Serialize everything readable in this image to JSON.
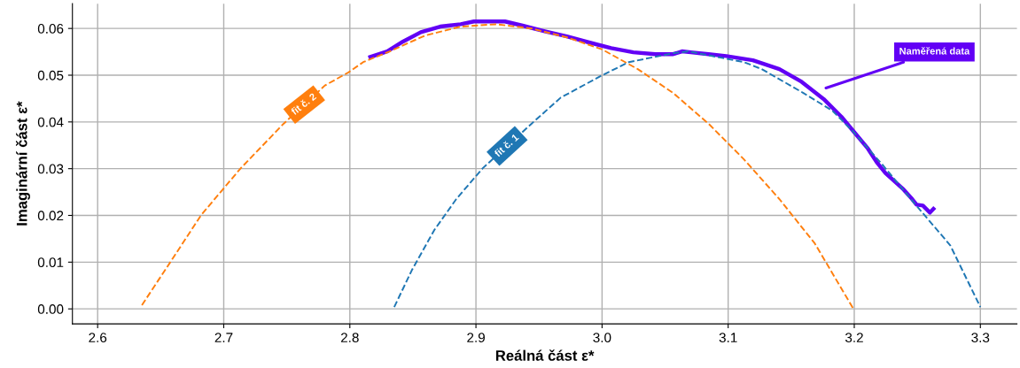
{
  "chart_data": {
    "type": "line",
    "xlabel": "Reálná část ε*",
    "ylabel": "Imaginární část ε*",
    "xlim": [
      2.58,
      3.329
    ],
    "ylim": [
      -0.0032,
      0.0653
    ],
    "xticks": [
      2.6,
      2.7,
      2.8,
      2.9,
      {
        "value": 3.0,
        "label": "3.0"
      },
      3.1,
      3.2,
      3.3
    ],
    "yticks": [
      {
        "value": 0,
        "label": "0.00"
      },
      0.01,
      0.02,
      0.03,
      0.04,
      0.05,
      0.06
    ],
    "grid": true,
    "legend": false,
    "marker": "none",
    "series": [
      {
        "name": "fit č. 2",
        "color": "#ff7f0e",
        "line_style": "dashed",
        "x": [
          2.6351,
          2.6574,
          2.6819,
          2.7006,
          2.7135,
          2.7474,
          2.7802,
          2.7989,
          2.8106,
          2.8317,
          2.8598,
          2.8879,
          2.9159,
          2.944,
          2.9721,
          3.0002,
          3.0283,
          3.0564,
          3.0845,
          3.1125,
          3.1406,
          3.1687,
          3.1989
        ],
        "values": [
          0.0008,
          0.0099,
          0.02,
          0.026,
          0.0301,
          0.0396,
          0.0478,
          0.0506,
          0.0528,
          0.0551,
          0.0585,
          0.0604,
          0.0609,
          0.06,
          0.0581,
          0.0555,
          0.0513,
          0.0462,
          0.0396,
          0.032,
          0.0235,
          0.014,
          0.0002
        ]
      },
      {
        "name": "fit č. 1",
        "color": "#1f77b4",
        "line_style": "dashed",
        "x": [
          2.8352,
          2.8492,
          2.8668,
          2.8844,
          2.9054,
          2.944,
          2.9672,
          3.0002,
          3.0213,
          3.0564,
          3.0683,
          3.1125,
          3.1266,
          3.1596,
          3.1827,
          3.1989,
          3.2228,
          3.248,
          3.2761,
          3.3
        ],
        "values": [
          0.0004,
          0.0083,
          0.0168,
          0.0235,
          0.0301,
          0.0396,
          0.0452,
          0.05,
          0.0528,
          0.0547,
          0.0551,
          0.0528,
          0.0513,
          0.0462,
          0.0424,
          0.038,
          0.0307,
          0.0225,
          0.0136,
          0.0004
        ]
      },
      {
        "name": "Naměřená data",
        "color": "#6200f5",
        "line_style": "solid",
        "x": [
          2.8162,
          2.8296,
          2.8422,
          2.8563,
          2.8717,
          2.8879,
          2.8984,
          2.923,
          2.937,
          2.9546,
          2.9721,
          2.9897,
          3.0072,
          3.0248,
          3.0423,
          3.0564,
          3.0634,
          3.0704,
          3.0845,
          3.0985,
          3.1196,
          3.1406,
          3.1582,
          3.1757,
          3.1898,
          3.2003,
          3.2108,
          3.2178,
          3.2249,
          3.2319,
          3.2389,
          3.2459,
          3.2494,
          3.2544,
          3.26,
          3.2628
        ],
        "values": [
          0.0539,
          0.0551,
          0.0572,
          0.0592,
          0.0604,
          0.0609,
          0.0615,
          0.0615,
          0.0606,
          0.0594,
          0.0583,
          0.057,
          0.0558,
          0.0549,
          0.0545,
          0.0545,
          0.0551,
          0.0549,
          0.0545,
          0.0541,
          0.0532,
          0.0513,
          0.0486,
          0.0449,
          0.0411,
          0.0377,
          0.0343,
          0.0314,
          0.029,
          0.0273,
          0.0256,
          0.0235,
          0.0223,
          0.0221,
          0.0206,
          0.0214
        ]
      }
    ]
  }
}
